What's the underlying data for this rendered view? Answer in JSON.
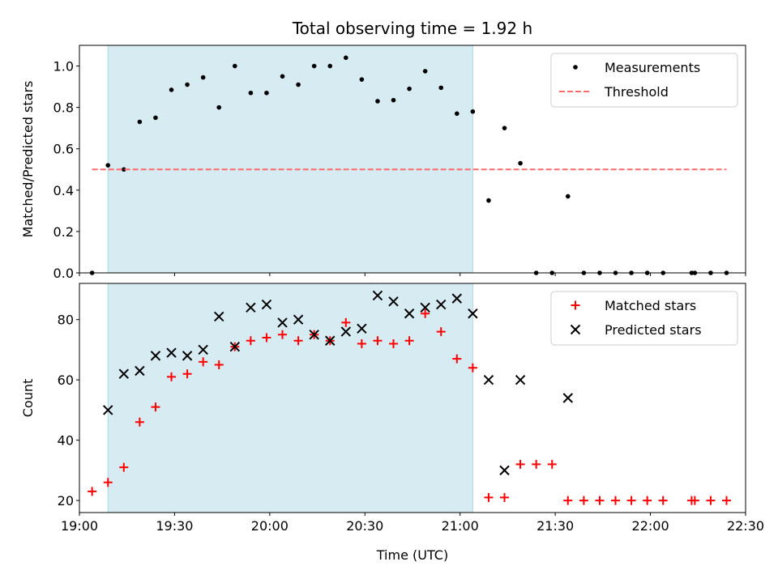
{
  "chart_data": [
    {
      "type": "scatter",
      "title": "Total observing time = 1.92 h",
      "xlabel": "",
      "ylabel": "Matched/Predicted stars",
      "xlim": [
        "19:00",
        "22:30"
      ],
      "ylim": [
        0,
        1.1
      ],
      "grid": false,
      "legend_position": "top-right",
      "x_tick_labels": [
        "19:00",
        "19:30",
        "20:00",
        "20:30",
        "21:00",
        "21:30",
        "22:00",
        "22:30"
      ],
      "y_ticks": [
        0.0,
        0.2,
        0.4,
        0.6,
        0.8,
        1.0
      ],
      "y_tick_labels": [
        "0.0",
        "0.2",
        "0.4",
        "0.6",
        "0.8",
        "1.0"
      ],
      "shaded_interval": [
        "19:09",
        "21:04"
      ],
      "series": [
        {
          "name": "Measurements",
          "marker": "dot",
          "color": "#000000",
          "points": [
            [
              "19:04",
              0.0
            ],
            [
              "19:09",
              0.52
            ],
            [
              "19:14",
              0.5
            ],
            [
              "19:19",
              0.73
            ],
            [
              "19:24",
              0.75
            ],
            [
              "19:29",
              0.885
            ],
            [
              "19:34",
              0.91
            ],
            [
              "19:39",
              0.945
            ],
            [
              "19:44",
              0.8
            ],
            [
              "19:49",
              1.0
            ],
            [
              "19:54",
              0.87
            ],
            [
              "19:59",
              0.87
            ],
            [
              "20:04",
              0.95
            ],
            [
              "20:09",
              0.91
            ],
            [
              "20:14",
              1.0
            ],
            [
              "20:19",
              1.0
            ],
            [
              "20:24",
              1.04
            ],
            [
              "20:29",
              0.935
            ],
            [
              "20:34",
              0.83
            ],
            [
              "20:39",
              0.835
            ],
            [
              "20:44",
              0.89
            ],
            [
              "20:49",
              0.975
            ],
            [
              "20:54",
              0.895
            ],
            [
              "20:59",
              0.77
            ],
            [
              "21:04",
              0.78
            ],
            [
              "21:09",
              0.35
            ],
            [
              "21:14",
              0.7
            ],
            [
              "21:19",
              0.53
            ],
            [
              "21:24",
              0.0
            ],
            [
              "21:29",
              0.0
            ],
            [
              "21:34",
              0.37
            ],
            [
              "21:39",
              0.0
            ],
            [
              "21:44",
              0.0
            ],
            [
              "21:49",
              0.0
            ],
            [
              "21:54",
              0.0
            ],
            [
              "21:59",
              0.0
            ],
            [
              "22:04",
              0.0
            ],
            [
              "22:13",
              0.0
            ],
            [
              "22:14",
              0.0
            ],
            [
              "22:19",
              0.0
            ],
            [
              "22:24",
              0.0
            ]
          ]
        },
        {
          "name": "Threshold",
          "type": "line",
          "style": "dashed",
          "color": "#ff6b6b",
          "points": [
            [
              "19:04",
              0.5
            ],
            [
              "22:24",
              0.5
            ]
          ]
        }
      ]
    },
    {
      "type": "scatter",
      "title": "",
      "xlabel": "Time (UTC)",
      "ylabel": "Count",
      "xlim": [
        "19:00",
        "22:30"
      ],
      "ylim": [
        16,
        92
      ],
      "grid": false,
      "legend_position": "top-right",
      "x_tick_labels": [
        "19:00",
        "19:30",
        "20:00",
        "20:30",
        "21:00",
        "21:30",
        "22:00",
        "22:30"
      ],
      "y_ticks": [
        20,
        40,
        60,
        80
      ],
      "y_tick_labels": [
        "20",
        "40",
        "60",
        "80"
      ],
      "shaded_interval": [
        "19:09",
        "21:04"
      ],
      "series": [
        {
          "name": "Matched stars",
          "marker": "plus",
          "color": "#ff0000",
          "points": [
            [
              "19:04",
              23
            ],
            [
              "19:09",
              26
            ],
            [
              "19:14",
              31
            ],
            [
              "19:19",
              46
            ],
            [
              "19:24",
              51
            ],
            [
              "19:29",
              61
            ],
            [
              "19:34",
              62
            ],
            [
              "19:39",
              66
            ],
            [
              "19:44",
              65
            ],
            [
              "19:49",
              71
            ],
            [
              "19:54",
              73
            ],
            [
              "19:59",
              74
            ],
            [
              "20:04",
              75
            ],
            [
              "20:09",
              73
            ],
            [
              "20:14",
              75
            ],
            [
              "20:19",
              73
            ],
            [
              "20:24",
              79
            ],
            [
              "20:29",
              72
            ],
            [
              "20:34",
              73
            ],
            [
              "20:39",
              72
            ],
            [
              "20:44",
              73
            ],
            [
              "20:49",
              82
            ],
            [
              "20:54",
              76
            ],
            [
              "20:59",
              67
            ],
            [
              "21:04",
              64
            ],
            [
              "21:09",
              21
            ],
            [
              "21:14",
              21
            ],
            [
              "21:19",
              32
            ],
            [
              "21:24",
              32
            ],
            [
              "21:29",
              32
            ],
            [
              "21:34",
              20
            ],
            [
              "21:39",
              20
            ],
            [
              "21:44",
              20
            ],
            [
              "21:49",
              20
            ],
            [
              "21:54",
              20
            ],
            [
              "21:59",
              20
            ],
            [
              "22:04",
              20
            ],
            [
              "22:13",
              20
            ],
            [
              "22:14",
              20
            ],
            [
              "22:19",
              20
            ],
            [
              "22:24",
              20
            ]
          ]
        },
        {
          "name": "Predicted stars",
          "marker": "x",
          "color": "#000000",
          "points": [
            [
              "19:09",
              50
            ],
            [
              "19:14",
              62
            ],
            [
              "19:19",
              63
            ],
            [
              "19:24",
              68
            ],
            [
              "19:29",
              69
            ],
            [
              "19:34",
              68
            ],
            [
              "19:39",
              70
            ],
            [
              "19:44",
              81
            ],
            [
              "19:49",
              71
            ],
            [
              "19:54",
              84
            ],
            [
              "19:59",
              85
            ],
            [
              "20:04",
              79
            ],
            [
              "20:09",
              80
            ],
            [
              "20:14",
              75
            ],
            [
              "20:19",
              73
            ],
            [
              "20:24",
              76
            ],
            [
              "20:29",
              77
            ],
            [
              "20:34",
              88
            ],
            [
              "20:39",
              86
            ],
            [
              "20:44",
              82
            ],
            [
              "20:49",
              84
            ],
            [
              "20:54",
              85
            ],
            [
              "20:59",
              87
            ],
            [
              "21:04",
              82
            ],
            [
              "21:09",
              60
            ],
            [
              "21:14",
              30
            ],
            [
              "21:19",
              60
            ],
            [
              "21:34",
              54
            ]
          ]
        }
      ]
    }
  ]
}
